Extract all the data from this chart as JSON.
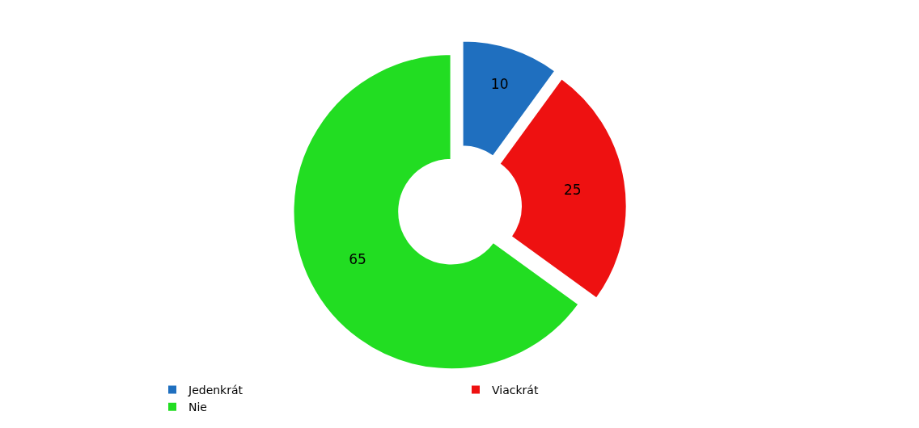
{
  "chart_data": {
    "type": "donut",
    "categories": [
      "Jedenkrát",
      "Viackrát",
      "Nie"
    ],
    "values": [
      10,
      25,
      65
    ],
    "colors": [
      "#1f6fbf",
      "#ee1111",
      "#22dd22"
    ],
    "data_labels": true,
    "legend": "bottom"
  }
}
